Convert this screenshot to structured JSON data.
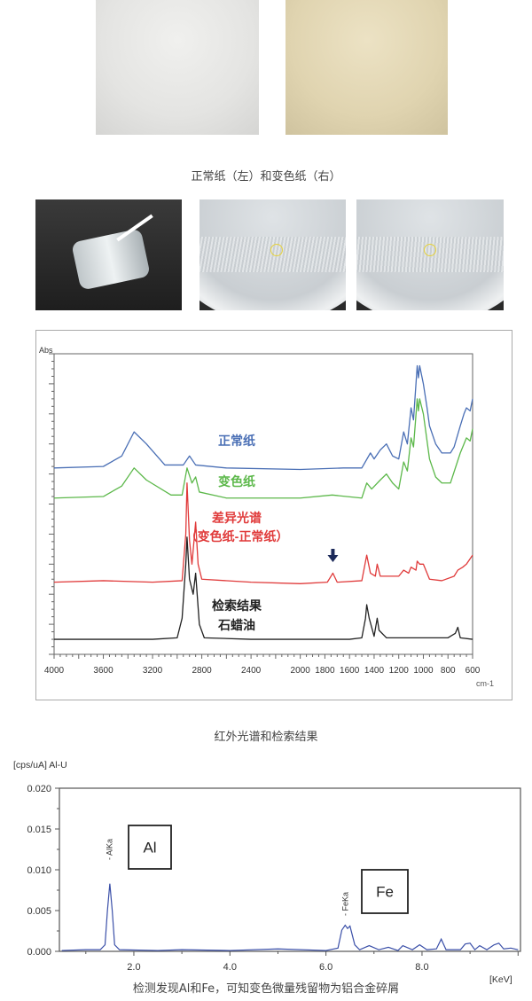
{
  "captions": {
    "paper_photos": "正常纸（左）和变色纸（右）",
    "ir": "红外光谱和检索结果",
    "edx": "检测发现Al和Fe，可知变色微量残留物为铝合金碎屑"
  },
  "colors": {
    "blue": "#4a6fb5",
    "green": "#5cb84a",
    "red": "#e03a3a",
    "black": "#222222",
    "edx_line": "#3a4fa8",
    "arrow": "#1c2a5a"
  },
  "chart_data": [
    {
      "type": "line",
      "ylabel": "Abs",
      "xlabel": "cm-1",
      "xlim": [
        4000,
        600
      ],
      "ylim": [
        0,
        100
      ],
      "x_reversed": true,
      "xticks": [
        "4000",
        "3600",
        "3200",
        "2800",
        "2400",
        "2000",
        "1800",
        "1600",
        "1400",
        "1200",
        "1000",
        "800",
        "600"
      ],
      "grid": false,
      "series": [
        {
          "name": "正常纸",
          "color": "#4a6fb5",
          "points": [
            [
              4000,
              62
            ],
            [
              3600,
              62.5
            ],
            [
              3450,
              66
            ],
            [
              3350,
              74
            ],
            [
              3250,
              70
            ],
            [
              3100,
              63
            ],
            [
              2950,
              63
            ],
            [
              2900,
              66
            ],
            [
              2850,
              63
            ],
            [
              2600,
              62
            ],
            [
              2000,
              61.5
            ],
            [
              1650,
              62
            ],
            [
              1500,
              62
            ],
            [
              1430,
              67
            ],
            [
              1400,
              65
            ],
            [
              1350,
              68
            ],
            [
              1300,
              70
            ],
            [
              1250,
              66
            ],
            [
              1200,
              65
            ],
            [
              1160,
              74
            ],
            [
              1130,
              70
            ],
            [
              1100,
              82
            ],
            [
              1080,
              78
            ],
            [
              1050,
              96
            ],
            [
              1040,
              92
            ],
            [
              1030,
              96
            ],
            [
              1000,
              90
            ],
            [
              970,
              82
            ],
            [
              950,
              76
            ],
            [
              900,
              70
            ],
            [
              850,
              67
            ],
            [
              780,
              67
            ],
            [
              750,
              69
            ],
            [
              700,
              76
            ],
            [
              670,
              80
            ],
            [
              650,
              82
            ],
            [
              620,
              81
            ],
            [
              600,
              85
            ]
          ]
        },
        {
          "name": "变色纸",
          "color": "#5cb84a",
          "points": [
            [
              4000,
              52
            ],
            [
              3600,
              52.5
            ],
            [
              3450,
              56
            ],
            [
              3350,
              62
            ],
            [
              3250,
              58
            ],
            [
              3050,
              53
            ],
            [
              2960,
              53
            ],
            [
              2920,
              62
            ],
            [
              2880,
              57
            ],
            [
              2850,
              59
            ],
            [
              2820,
              54
            ],
            [
              2600,
              52
            ],
            [
              2000,
              52
            ],
            [
              1740,
              53
            ],
            [
              1500,
              52
            ],
            [
              1460,
              57
            ],
            [
              1420,
              55
            ],
            [
              1350,
              58
            ],
            [
              1300,
              60
            ],
            [
              1250,
              57
            ],
            [
              1200,
              55
            ],
            [
              1160,
              64
            ],
            [
              1130,
              61
            ],
            [
              1100,
              72
            ],
            [
              1080,
              69
            ],
            [
              1050,
              85
            ],
            [
              1040,
              81
            ],
            [
              1030,
              85
            ],
            [
              1000,
              80
            ],
            [
              960,
              68
            ],
            [
              950,
              65
            ],
            [
              900,
              59
            ],
            [
              850,
              57
            ],
            [
              780,
              57
            ],
            [
              700,
              67
            ],
            [
              670,
              70
            ],
            [
              650,
              72
            ],
            [
              620,
              71
            ],
            [
              600,
              75
            ]
          ]
        },
        {
          "name": "差异光谱（变色纸-正常纸）",
          "color": "#e03a3a",
          "points": [
            [
              4000,
              24
            ],
            [
              3600,
              24.5
            ],
            [
              3200,
              24
            ],
            [
              2960,
              24.5
            ],
            [
              2930,
              40
            ],
            [
              2920,
              57
            ],
            [
              2900,
              38
            ],
            [
              2880,
              30
            ],
            [
              2850,
              44
            ],
            [
              2830,
              30
            ],
            [
              2800,
              25
            ],
            [
              2400,
              24
            ],
            [
              2000,
              23.5
            ],
            [
              1780,
              24
            ],
            [
              1735,
              27
            ],
            [
              1700,
              24
            ],
            [
              1500,
              24.5
            ],
            [
              1460,
              33
            ],
            [
              1430,
              27
            ],
            [
              1390,
              26
            ],
            [
              1375,
              30
            ],
            [
              1350,
              26
            ],
            [
              1200,
              26
            ],
            [
              1160,
              28
            ],
            [
              1120,
              27
            ],
            [
              1100,
              29
            ],
            [
              1060,
              28
            ],
            [
              1050,
              31
            ],
            [
              1030,
              30
            ],
            [
              1000,
              30
            ],
            [
              950,
              25
            ],
            [
              850,
              24.5
            ],
            [
              750,
              26
            ],
            [
              720,
              28
            ],
            [
              680,
              29
            ],
            [
              650,
              30
            ],
            [
              600,
              33
            ]
          ]
        },
        {
          "name": "检索结果 石蜡油",
          "color": "#222222",
          "points": [
            [
              4000,
              5
            ],
            [
              3200,
              5
            ],
            [
              3000,
              5.5
            ],
            [
              2960,
              12
            ],
            [
              2930,
              30
            ],
            [
              2920,
              39
            ],
            [
              2900,
              25
            ],
            [
              2870,
              20
            ],
            [
              2850,
              27
            ],
            [
              2820,
              10
            ],
            [
              2780,
              5.5
            ],
            [
              2400,
              5
            ],
            [
              1600,
              5
            ],
            [
              1500,
              5.5
            ],
            [
              1470,
              12
            ],
            [
              1460,
              16.5
            ],
            [
              1440,
              12
            ],
            [
              1400,
              6
            ],
            [
              1375,
              12
            ],
            [
              1360,
              8
            ],
            [
              1300,
              5.5
            ],
            [
              1000,
              5.5
            ],
            [
              800,
              5.5
            ],
            [
              740,
              7
            ],
            [
              720,
              9
            ],
            [
              700,
              5.5
            ],
            [
              600,
              5
            ]
          ]
        }
      ],
      "annotations": [
        "正常纸",
        "变色纸",
        "差异光谱",
        "（变色纸-正常纸）",
        "检索结果",
        "石蜡油"
      ],
      "arrow_at": 1735
    },
    {
      "type": "line",
      "ylabel": "[cps/uA] Al-U",
      "xlabel": "[KeV]",
      "xlim": [
        0.45,
        10.05
      ],
      "ylim": [
        0,
        0.02
      ],
      "yticks": [
        "0.000",
        "0.005",
        "0.010",
        "0.015",
        "0.020"
      ],
      "xticks": [
        "2.0",
        "4.0",
        "6.0",
        "8.0"
      ],
      "grid": false,
      "series": [
        {
          "color": "#3a4fa8",
          "points": [
            [
              0.5,
              0.0001
            ],
            [
              1.0,
              0.0002
            ],
            [
              1.3,
              0.0002
            ],
            [
              1.4,
              0.0008
            ],
            [
              1.45,
              0.005
            ],
            [
              1.5,
              0.0083
            ],
            [
              1.55,
              0.005
            ],
            [
              1.6,
              0.0008
            ],
            [
              1.7,
              0.0002
            ],
            [
              2.5,
              0.0001
            ],
            [
              3.0,
              0.0002
            ],
            [
              4.0,
              0.0001
            ],
            [
              5.0,
              0.0003
            ],
            [
              6.0,
              0.0001
            ],
            [
              6.25,
              0.0004
            ],
            [
              6.33,
              0.0026
            ],
            [
              6.4,
              0.0032
            ],
            [
              6.45,
              0.0028
            ],
            [
              6.5,
              0.0031
            ],
            [
              6.6,
              0.0008
            ],
            [
              6.7,
              0.0002
            ],
            [
              6.9,
              0.0007
            ],
            [
              7.1,
              0.0002
            ],
            [
              7.3,
              0.0005
            ],
            [
              7.5,
              0.0001
            ],
            [
              7.6,
              0.0007
            ],
            [
              7.8,
              0.0002
            ],
            [
              7.95,
              0.0008
            ],
            [
              8.1,
              0.0002
            ],
            [
              8.3,
              0.0003
            ],
            [
              8.4,
              0.0015
            ],
            [
              8.5,
              0.0002
            ],
            [
              8.8,
              0.0002
            ],
            [
              8.9,
              0.0009
            ],
            [
              9.0,
              0.001
            ],
            [
              9.1,
              0.0002
            ],
            [
              9.2,
              0.0007
            ],
            [
              9.35,
              0.0002
            ],
            [
              9.5,
              0.0008
            ],
            [
              9.6,
              0.001
            ],
            [
              9.7,
              0.0003
            ],
            [
              9.85,
              0.0004
            ],
            [
              10.0,
              0.0002
            ]
          ]
        }
      ],
      "peak_labels": [
        {
          "text": "AlKa",
          "x": 1.49
        },
        {
          "text": "FeKa",
          "x": 6.4
        }
      ],
      "element_boxes": [
        "Al",
        "Fe"
      ]
    }
  ]
}
